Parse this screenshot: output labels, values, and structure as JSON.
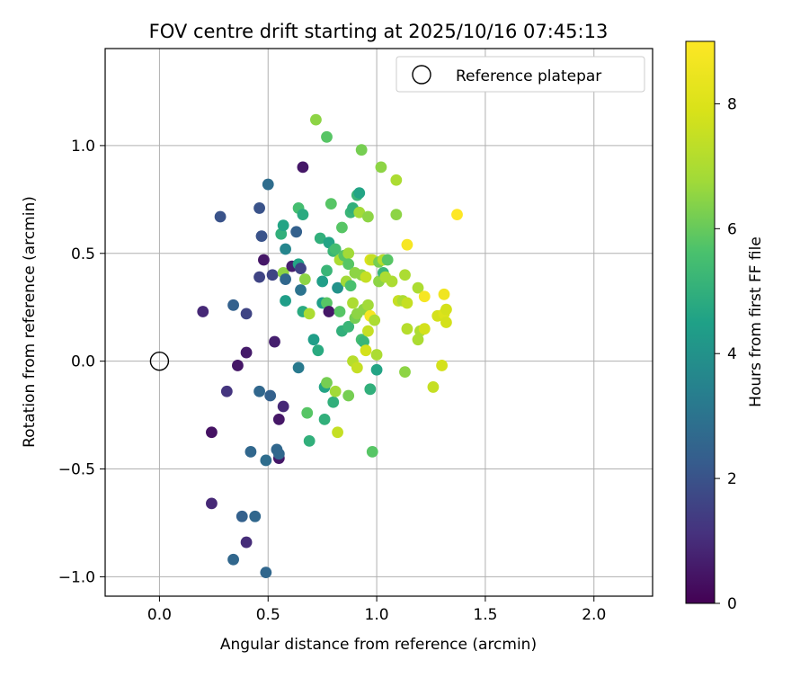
{
  "chart_data": {
    "type": "scatter",
    "title": "FOV centre drift starting at 2025/10/16 07:45:13",
    "xlabel": "Angular distance from reference (arcmin)",
    "ylabel": "Rotation from reference (arcmin)",
    "xlim": [
      -0.25,
      2.27
    ],
    "ylim": [
      -1.09,
      1.45
    ],
    "xticks": [
      0.0,
      0.5,
      1.0,
      1.5,
      2.0
    ],
    "xtick_labels": [
      "0.0",
      "0.5",
      "1.0",
      "1.5",
      "2.0"
    ],
    "yticks": [
      -1.0,
      -0.5,
      0.0,
      0.5,
      1.0
    ],
    "ytick_labels": [
      "−1.0",
      "−0.5",
      "0.0",
      "0.5",
      "1.0"
    ],
    "grid": true,
    "legend": {
      "position": "top-right",
      "label": "Reference platepar"
    },
    "reference_point": {
      "x": 0.0,
      "y": 0.0
    },
    "colorbar": {
      "label": "Hours from first FF file",
      "min": 0,
      "max": 9,
      "ticks": [
        0,
        2,
        4,
        6,
        8
      ],
      "colormap": "viridis"
    },
    "points": [
      {
        "x": 0.2,
        "y": 0.23,
        "t": 0.9
      },
      {
        "x": 0.24,
        "y": -0.33,
        "t": 0.4
      },
      {
        "x": 0.24,
        "y": -0.66,
        "t": 0.9
      },
      {
        "x": 0.28,
        "y": 0.67,
        "t": 2.0
      },
      {
        "x": 0.31,
        "y": -0.14,
        "t": 1.2
      },
      {
        "x": 0.34,
        "y": -0.92,
        "t": 2.6
      },
      {
        "x": 0.34,
        "y": 0.26,
        "t": 2.4
      },
      {
        "x": 0.36,
        "y": -0.02,
        "t": 0.5
      },
      {
        "x": 0.38,
        "y": -0.72,
        "t": 2.4
      },
      {
        "x": 0.4,
        "y": -0.84,
        "t": 1.0
      },
      {
        "x": 0.4,
        "y": 0.04,
        "t": 0.6
      },
      {
        "x": 0.4,
        "y": 0.22,
        "t": 1.6
      },
      {
        "x": 0.42,
        "y": -0.42,
        "t": 2.6
      },
      {
        "x": 0.44,
        "y": -0.72,
        "t": 2.6
      },
      {
        "x": 0.46,
        "y": 0.71,
        "t": 2.0
      },
      {
        "x": 0.46,
        "y": 0.39,
        "t": 1.6
      },
      {
        "x": 0.46,
        "y": -0.14,
        "t": 2.6
      },
      {
        "x": 0.47,
        "y": 0.58,
        "t": 2.0
      },
      {
        "x": 0.48,
        "y": 0.47,
        "t": 0.5
      },
      {
        "x": 0.49,
        "y": -0.98,
        "t": 2.6
      },
      {
        "x": 0.49,
        "y": -0.46,
        "t": 2.8
      },
      {
        "x": 0.5,
        "y": 0.82,
        "t": 2.8
      },
      {
        "x": 0.51,
        "y": -0.16,
        "t": 2.4
      },
      {
        "x": 0.52,
        "y": 0.4,
        "t": 1.6
      },
      {
        "x": 0.53,
        "y": 0.09,
        "t": 0.7
      },
      {
        "x": 0.54,
        "y": -0.41,
        "t": 2.6
      },
      {
        "x": 0.55,
        "y": -0.45,
        "t": 0.5
      },
      {
        "x": 0.55,
        "y": -0.27,
        "t": 0.5
      },
      {
        "x": 0.55,
        "y": -0.43,
        "t": 2.6
      },
      {
        "x": 0.56,
        "y": 0.59,
        "t": 5.0
      },
      {
        "x": 0.57,
        "y": 0.63,
        "t": 4.6
      },
      {
        "x": 0.57,
        "y": 0.41,
        "t": 6.5
      },
      {
        "x": 0.57,
        "y": -0.21,
        "t": 0.9
      },
      {
        "x": 0.58,
        "y": 0.38,
        "t": 2.6
      },
      {
        "x": 0.58,
        "y": 0.52,
        "t": 3.6
      },
      {
        "x": 0.58,
        "y": 0.28,
        "t": 4.4
      },
      {
        "x": 0.61,
        "y": 0.44,
        "t": 0.7
      },
      {
        "x": 0.63,
        "y": 0.6,
        "t": 2.4
      },
      {
        "x": 0.64,
        "y": 0.45,
        "t": 4.6
      },
      {
        "x": 0.64,
        "y": -0.03,
        "t": 3.2
      },
      {
        "x": 0.64,
        "y": 0.71,
        "t": 5.5
      },
      {
        "x": 0.65,
        "y": 0.43,
        "t": 1.6
      },
      {
        "x": 0.65,
        "y": 0.33,
        "t": 3.0
      },
      {
        "x": 0.66,
        "y": 0.68,
        "t": 4.8
      },
      {
        "x": 0.66,
        "y": 0.23,
        "t": 4.8
      },
      {
        "x": 0.66,
        "y": 0.9,
        "t": 0.5
      },
      {
        "x": 0.67,
        "y": 0.38,
        "t": 6.5
      },
      {
        "x": 0.68,
        "y": -0.24,
        "t": 5.8
      },
      {
        "x": 0.69,
        "y": -0.37,
        "t": 5.0
      },
      {
        "x": 0.69,
        "y": 0.22,
        "t": 7.0
      },
      {
        "x": 0.71,
        "y": 0.1,
        "t": 4.4
      },
      {
        "x": 0.72,
        "y": 1.12,
        "t": 6.5
      },
      {
        "x": 0.73,
        "y": 0.05,
        "t": 4.8
      },
      {
        "x": 0.74,
        "y": 0.57,
        "t": 5.0
      },
      {
        "x": 0.75,
        "y": 0.37,
        "t": 4.4
      },
      {
        "x": 0.75,
        "y": 0.27,
        "t": 4.4
      },
      {
        "x": 0.76,
        "y": -0.27,
        "t": 5.0
      },
      {
        "x": 0.76,
        "y": -0.12,
        "t": 4.6
      },
      {
        "x": 0.77,
        "y": 0.42,
        "t": 5.2
      },
      {
        "x": 0.77,
        "y": 1.04,
        "t": 5.8
      },
      {
        "x": 0.77,
        "y": 0.27,
        "t": 5.8
      },
      {
        "x": 0.77,
        "y": -0.1,
        "t": 6.2
      },
      {
        "x": 0.78,
        "y": 0.23,
        "t": 0.5
      },
      {
        "x": 0.78,
        "y": 0.55,
        "t": 4.6
      },
      {
        "x": 0.79,
        "y": 0.73,
        "t": 5.8
      },
      {
        "x": 0.8,
        "y": 0.51,
        "t": 5.2
      },
      {
        "x": 0.8,
        "y": -0.19,
        "t": 5.0
      },
      {
        "x": 0.81,
        "y": -0.14,
        "t": 6.8
      },
      {
        "x": 0.81,
        "y": 0.52,
        "t": 5.5
      },
      {
        "x": 0.82,
        "y": -0.33,
        "t": 7.5
      },
      {
        "x": 0.82,
        "y": 0.34,
        "t": 4.0
      },
      {
        "x": 0.83,
        "y": 0.47,
        "t": 7.0
      },
      {
        "x": 0.83,
        "y": 0.23,
        "t": 5.8
      },
      {
        "x": 0.84,
        "y": 0.14,
        "t": 5.0
      },
      {
        "x": 0.84,
        "y": 0.62,
        "t": 5.8
      },
      {
        "x": 0.85,
        "y": 0.49,
        "t": 5.8
      },
      {
        "x": 0.86,
        "y": 0.37,
        "t": 6.8
      },
      {
        "x": 0.87,
        "y": 0.16,
        "t": 5.2
      },
      {
        "x": 0.87,
        "y": -0.16,
        "t": 6.2
      },
      {
        "x": 0.87,
        "y": 0.5,
        "t": 6.8
      },
      {
        "x": 0.87,
        "y": 0.45,
        "t": 5.8
      },
      {
        "x": 0.88,
        "y": 0.35,
        "t": 5.6
      },
      {
        "x": 0.88,
        "y": 0.69,
        "t": 5.2
      },
      {
        "x": 0.89,
        "y": 0.0,
        "t": 7.2
      },
      {
        "x": 0.89,
        "y": 0.71,
        "t": 5.0
      },
      {
        "x": 0.89,
        "y": 0.27,
        "t": 7.0
      },
      {
        "x": 0.9,
        "y": 0.41,
        "t": 6.5
      },
      {
        "x": 0.9,
        "y": 0.2,
        "t": 6.2
      },
      {
        "x": 0.91,
        "y": 0.77,
        "t": 5.2
      },
      {
        "x": 0.91,
        "y": -0.03,
        "t": 7.5
      },
      {
        "x": 0.91,
        "y": 0.22,
        "t": 6.5
      },
      {
        "x": 0.92,
        "y": 0.78,
        "t": 4.6
      },
      {
        "x": 0.92,
        "y": 0.69,
        "t": 6.8
      },
      {
        "x": 0.93,
        "y": 0.1,
        "t": 5.5
      },
      {
        "x": 0.93,
        "y": 0.4,
        "t": 6.5
      },
      {
        "x": 0.93,
        "y": 0.98,
        "t": 6.2
      },
      {
        "x": 0.94,
        "y": 0.09,
        "t": 5.2
      },
      {
        "x": 0.94,
        "y": 0.24,
        "t": 6.5
      },
      {
        "x": 0.95,
        "y": 0.05,
        "t": 7.8
      },
      {
        "x": 0.95,
        "y": 0.39,
        "t": 7.5
      },
      {
        "x": 0.96,
        "y": 0.67,
        "t": 6.5
      },
      {
        "x": 0.96,
        "y": 0.26,
        "t": 6.8
      },
      {
        "x": 0.96,
        "y": 0.14,
        "t": 7.5
      },
      {
        "x": 0.97,
        "y": 0.21,
        "t": 8.8
      },
      {
        "x": 0.97,
        "y": -0.13,
        "t": 5.0
      },
      {
        "x": 0.97,
        "y": 0.47,
        "t": 8.0
      },
      {
        "x": 0.98,
        "y": -0.42,
        "t": 5.8
      },
      {
        "x": 0.98,
        "y": 0.47,
        "t": 7.5
      },
      {
        "x": 0.99,
        "y": 0.19,
        "t": 7.0
      },
      {
        "x": 1.0,
        "y": -0.04,
        "t": 4.6
      },
      {
        "x": 1.0,
        "y": 0.03,
        "t": 7.0
      },
      {
        "x": 1.01,
        "y": 0.37,
        "t": 6.5
      },
      {
        "x": 1.01,
        "y": 0.46,
        "t": 6.2
      },
      {
        "x": 1.02,
        "y": 0.9,
        "t": 6.5
      },
      {
        "x": 1.03,
        "y": 0.47,
        "t": 7.2
      },
      {
        "x": 1.03,
        "y": 0.41,
        "t": 5.2
      },
      {
        "x": 1.04,
        "y": 0.39,
        "t": 7.0
      },
      {
        "x": 1.05,
        "y": 0.47,
        "t": 5.8
      },
      {
        "x": 1.07,
        "y": 0.37,
        "t": 7.0
      },
      {
        "x": 1.09,
        "y": 0.84,
        "t": 7.0
      },
      {
        "x": 1.09,
        "y": 0.68,
        "t": 6.5
      },
      {
        "x": 1.1,
        "y": 0.28,
        "t": 7.5
      },
      {
        "x": 1.12,
        "y": 0.28,
        "t": 7.0
      },
      {
        "x": 1.13,
        "y": 0.4,
        "t": 7.0
      },
      {
        "x": 1.13,
        "y": -0.05,
        "t": 6.5
      },
      {
        "x": 1.14,
        "y": 0.54,
        "t": 8.8
      },
      {
        "x": 1.14,
        "y": 0.15,
        "t": 7.2
      },
      {
        "x": 1.14,
        "y": 0.27,
        "t": 7.5
      },
      {
        "x": 1.19,
        "y": 0.34,
        "t": 7.0
      },
      {
        "x": 1.19,
        "y": 0.1,
        "t": 7.0
      },
      {
        "x": 1.2,
        "y": 0.14,
        "t": 7.0
      },
      {
        "x": 1.22,
        "y": 0.15,
        "t": 7.8
      },
      {
        "x": 1.22,
        "y": 0.3,
        "t": 8.8
      },
      {
        "x": 1.26,
        "y": -0.12,
        "t": 7.5
      },
      {
        "x": 1.28,
        "y": 0.21,
        "t": 7.8
      },
      {
        "x": 1.3,
        "y": -0.02,
        "t": 7.8
      },
      {
        "x": 1.31,
        "y": 0.31,
        "t": 8.6
      },
      {
        "x": 1.31,
        "y": 0.22,
        "t": 8.0
      },
      {
        "x": 1.32,
        "y": 0.24,
        "t": 7.8
      },
      {
        "x": 1.32,
        "y": 0.18,
        "t": 7.8
      },
      {
        "x": 1.37,
        "y": 0.68,
        "t": 9.0
      }
    ]
  }
}
